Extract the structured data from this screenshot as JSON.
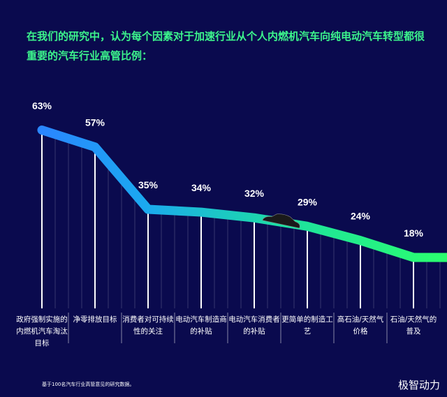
{
  "chart_data": {
    "type": "line",
    "title": "在我们的研究中，认为每个因素对于加速行业从个人内燃机汽车向纯电动汽车转型都很重要的汽车行业高管比例：",
    "categories": [
      "政府强制实施的内燃机汽车淘汰目标",
      "净零排放目标",
      "消费者对可持续性的关注",
      "电动汽车制造商的补贴",
      "电动汽车消费者的补贴",
      "更简单的制造工艺",
      "高石油/天然气价格",
      "石油/天然气的普及"
    ],
    "values": [
      63,
      57,
      35,
      34,
      32,
      29,
      24,
      18
    ],
    "value_labels": [
      "63%",
      "57%",
      "35%",
      "34%",
      "32%",
      "29%",
      "24%",
      "18%"
    ],
    "ylim": [
      0,
      70
    ],
    "footnote": "基于100名汽车行业高管意见的研究数据。",
    "watermark": "极智动力"
  }
}
